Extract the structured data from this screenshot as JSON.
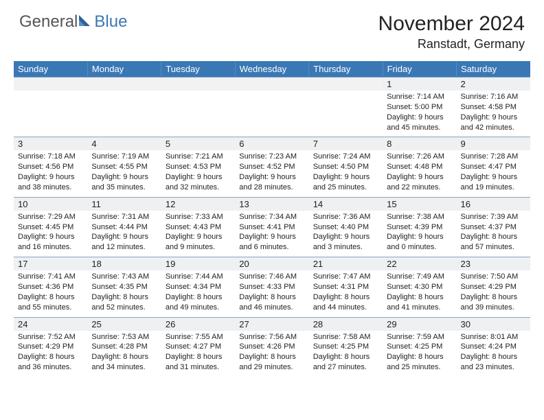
{
  "logo": {
    "text_general": "General",
    "text_blue": "Blue"
  },
  "header": {
    "month_year": "November 2024",
    "location": "Ranstadt, Germany"
  },
  "colors": {
    "header_bg": "#3a78b5",
    "header_text": "#ffffff",
    "daynum_bg": "#eef0f1",
    "daynum_border_top": "#8aa4bf",
    "body_text": "#222222",
    "page_bg": "#ffffff"
  },
  "typography": {
    "title_fontsize": 30,
    "location_fontsize": 18,
    "th_fontsize": 13,
    "daynum_fontsize": 13,
    "body_fontsize": 11
  },
  "days_of_week": [
    "Sunday",
    "Monday",
    "Tuesday",
    "Wednesday",
    "Thursday",
    "Friday",
    "Saturday"
  ],
  "weeks": [
    [
      {
        "num": "",
        "lines": [
          "",
          "",
          "",
          ""
        ]
      },
      {
        "num": "",
        "lines": [
          "",
          "",
          "",
          ""
        ]
      },
      {
        "num": "",
        "lines": [
          "",
          "",
          "",
          ""
        ]
      },
      {
        "num": "",
        "lines": [
          "",
          "",
          "",
          ""
        ]
      },
      {
        "num": "",
        "lines": [
          "",
          "",
          "",
          ""
        ]
      },
      {
        "num": "1",
        "lines": [
          "Sunrise: 7:14 AM",
          "Sunset: 5:00 PM",
          "Daylight: 9 hours",
          "and 45 minutes."
        ]
      },
      {
        "num": "2",
        "lines": [
          "Sunrise: 7:16 AM",
          "Sunset: 4:58 PM",
          "Daylight: 9 hours",
          "and 42 minutes."
        ]
      }
    ],
    [
      {
        "num": "3",
        "lines": [
          "Sunrise: 7:18 AM",
          "Sunset: 4:56 PM",
          "Daylight: 9 hours",
          "and 38 minutes."
        ]
      },
      {
        "num": "4",
        "lines": [
          "Sunrise: 7:19 AM",
          "Sunset: 4:55 PM",
          "Daylight: 9 hours",
          "and 35 minutes."
        ]
      },
      {
        "num": "5",
        "lines": [
          "Sunrise: 7:21 AM",
          "Sunset: 4:53 PM",
          "Daylight: 9 hours",
          "and 32 minutes."
        ]
      },
      {
        "num": "6",
        "lines": [
          "Sunrise: 7:23 AM",
          "Sunset: 4:52 PM",
          "Daylight: 9 hours",
          "and 28 minutes."
        ]
      },
      {
        "num": "7",
        "lines": [
          "Sunrise: 7:24 AM",
          "Sunset: 4:50 PM",
          "Daylight: 9 hours",
          "and 25 minutes."
        ]
      },
      {
        "num": "8",
        "lines": [
          "Sunrise: 7:26 AM",
          "Sunset: 4:48 PM",
          "Daylight: 9 hours",
          "and 22 minutes."
        ]
      },
      {
        "num": "9",
        "lines": [
          "Sunrise: 7:28 AM",
          "Sunset: 4:47 PM",
          "Daylight: 9 hours",
          "and 19 minutes."
        ]
      }
    ],
    [
      {
        "num": "10",
        "lines": [
          "Sunrise: 7:29 AM",
          "Sunset: 4:45 PM",
          "Daylight: 9 hours",
          "and 16 minutes."
        ]
      },
      {
        "num": "11",
        "lines": [
          "Sunrise: 7:31 AM",
          "Sunset: 4:44 PM",
          "Daylight: 9 hours",
          "and 12 minutes."
        ]
      },
      {
        "num": "12",
        "lines": [
          "Sunrise: 7:33 AM",
          "Sunset: 4:43 PM",
          "Daylight: 9 hours",
          "and 9 minutes."
        ]
      },
      {
        "num": "13",
        "lines": [
          "Sunrise: 7:34 AM",
          "Sunset: 4:41 PM",
          "Daylight: 9 hours",
          "and 6 minutes."
        ]
      },
      {
        "num": "14",
        "lines": [
          "Sunrise: 7:36 AM",
          "Sunset: 4:40 PM",
          "Daylight: 9 hours",
          "and 3 minutes."
        ]
      },
      {
        "num": "15",
        "lines": [
          "Sunrise: 7:38 AM",
          "Sunset: 4:39 PM",
          "Daylight: 9 hours",
          "and 0 minutes."
        ]
      },
      {
        "num": "16",
        "lines": [
          "Sunrise: 7:39 AM",
          "Sunset: 4:37 PM",
          "Daylight: 8 hours",
          "and 57 minutes."
        ]
      }
    ],
    [
      {
        "num": "17",
        "lines": [
          "Sunrise: 7:41 AM",
          "Sunset: 4:36 PM",
          "Daylight: 8 hours",
          "and 55 minutes."
        ]
      },
      {
        "num": "18",
        "lines": [
          "Sunrise: 7:43 AM",
          "Sunset: 4:35 PM",
          "Daylight: 8 hours",
          "and 52 minutes."
        ]
      },
      {
        "num": "19",
        "lines": [
          "Sunrise: 7:44 AM",
          "Sunset: 4:34 PM",
          "Daylight: 8 hours",
          "and 49 minutes."
        ]
      },
      {
        "num": "20",
        "lines": [
          "Sunrise: 7:46 AM",
          "Sunset: 4:33 PM",
          "Daylight: 8 hours",
          "and 46 minutes."
        ]
      },
      {
        "num": "21",
        "lines": [
          "Sunrise: 7:47 AM",
          "Sunset: 4:31 PM",
          "Daylight: 8 hours",
          "and 44 minutes."
        ]
      },
      {
        "num": "22",
        "lines": [
          "Sunrise: 7:49 AM",
          "Sunset: 4:30 PM",
          "Daylight: 8 hours",
          "and 41 minutes."
        ]
      },
      {
        "num": "23",
        "lines": [
          "Sunrise: 7:50 AM",
          "Sunset: 4:29 PM",
          "Daylight: 8 hours",
          "and 39 minutes."
        ]
      }
    ],
    [
      {
        "num": "24",
        "lines": [
          "Sunrise: 7:52 AM",
          "Sunset: 4:29 PM",
          "Daylight: 8 hours",
          "and 36 minutes."
        ]
      },
      {
        "num": "25",
        "lines": [
          "Sunrise: 7:53 AM",
          "Sunset: 4:28 PM",
          "Daylight: 8 hours",
          "and 34 minutes."
        ]
      },
      {
        "num": "26",
        "lines": [
          "Sunrise: 7:55 AM",
          "Sunset: 4:27 PM",
          "Daylight: 8 hours",
          "and 31 minutes."
        ]
      },
      {
        "num": "27",
        "lines": [
          "Sunrise: 7:56 AM",
          "Sunset: 4:26 PM",
          "Daylight: 8 hours",
          "and 29 minutes."
        ]
      },
      {
        "num": "28",
        "lines": [
          "Sunrise: 7:58 AM",
          "Sunset: 4:25 PM",
          "Daylight: 8 hours",
          "and 27 minutes."
        ]
      },
      {
        "num": "29",
        "lines": [
          "Sunrise: 7:59 AM",
          "Sunset: 4:25 PM",
          "Daylight: 8 hours",
          "and 25 minutes."
        ]
      },
      {
        "num": "30",
        "lines": [
          "Sunrise: 8:01 AM",
          "Sunset: 4:24 PM",
          "Daylight: 8 hours",
          "and 23 minutes."
        ]
      }
    ]
  ]
}
